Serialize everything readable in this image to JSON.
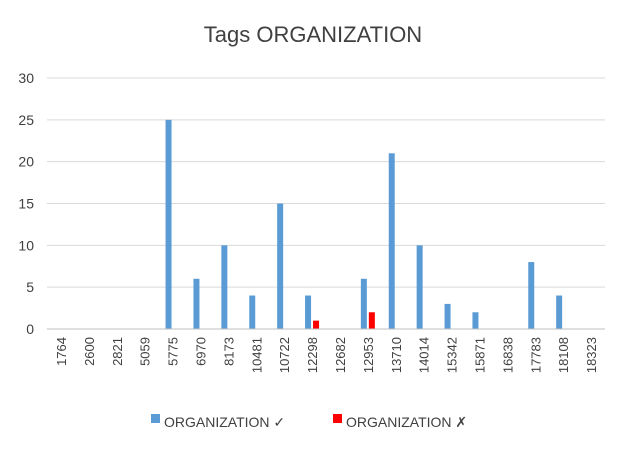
{
  "chart_data": {
    "type": "bar",
    "title": "Tags ORGANIZATION",
    "xlabel": "",
    "ylabel": "",
    "ylim": [
      0,
      30
    ],
    "yticks": [
      0,
      5,
      10,
      15,
      20,
      25,
      30
    ],
    "grid": true,
    "legend_position": "bottom",
    "categories": [
      "1764",
      "2600",
      "2821",
      "5059",
      "5775",
      "6970",
      "8173",
      "10481",
      "10722",
      "12298",
      "12682",
      "12953",
      "13710",
      "14014",
      "15342",
      "15871",
      "16838",
      "17783",
      "18108",
      "18323"
    ],
    "series": [
      {
        "name": "ORGANIZATION ✓",
        "color": "#5b9bd5",
        "values": [
          0,
          0,
          0,
          0,
          25,
          6,
          10,
          4,
          15,
          4,
          0,
          6,
          21,
          10,
          3,
          2,
          0,
          8,
          4,
          0
        ]
      },
      {
        "name": "ORGANIZATION ✗",
        "color": "#ff0000",
        "values": [
          0,
          0,
          0,
          0,
          0,
          0,
          0,
          0,
          0,
          1,
          0,
          2,
          0,
          0,
          0,
          0,
          0,
          0,
          0,
          0
        ]
      }
    ]
  }
}
